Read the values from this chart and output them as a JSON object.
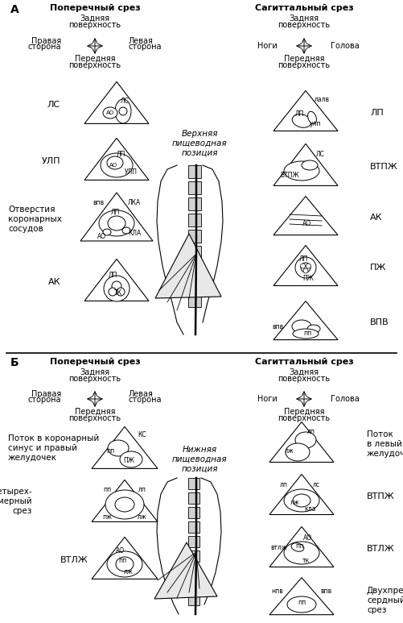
{
  "bg_color": "#ffffff",
  "fig_width": 5.01,
  "fig_height": 7.73,
  "dpi": 100,
  "section_A": "А",
  "section_B": "Б",
  "trans_title": "Поперечный срез",
  "sag_title": "Сагиттальный срез",
  "posterior": "Задняя\nповерхность",
  "anterior": "Передняя\nповерхность",
  "right": "Правая\nсторона",
  "left": "Левая\nсторона",
  "legs": "Ноги",
  "head": "Голова",
  "upper_pos": "Верхняя\nпищеводная\nпозиция",
  "lower_pos": "Нижняя\nпищеводная\nпозиция",
  "label_LS": "ЛС",
  "label_ULP": "УЛП",
  "label_cor": "Отверстия\nкоронарных\nсосудов",
  "label_AK": "АК",
  "label_LP": "ЛП",
  "label_VTPZH": "ВТПЖ",
  "label_AK2": "АК",
  "label_PZH": "ПЖ",
  "label_VPV": "ВПВ",
  "label_B1": "Поток в коронарный\nсинус и правый\nжелудочек",
  "label_B2": "Четырех-\nкамерный\nсрез",
  "label_B3": "ВТЛЖ",
  "label_B_r1": "Поток\nв левый\nжелудочек",
  "label_B_r2": "ВТПЖ",
  "label_B_r3": "ВТЛЖ",
  "label_B_r4": "Двухпред-\nсердный\nсрез"
}
